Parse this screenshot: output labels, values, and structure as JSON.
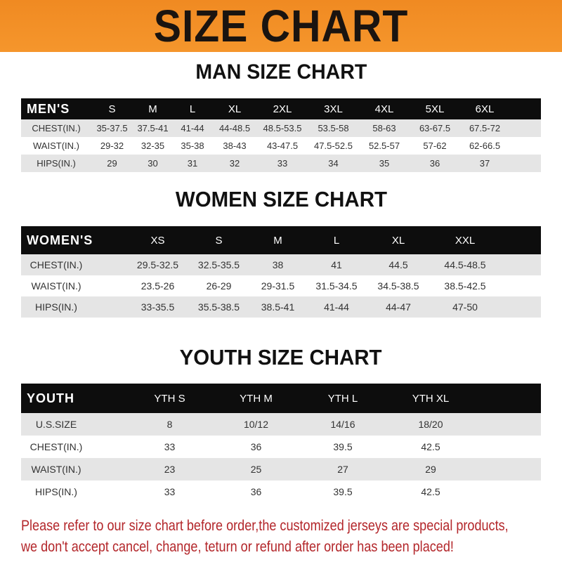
{
  "banner": "SIZE CHART",
  "men": {
    "title": "MAN SIZE CHART",
    "header": [
      "MEN'S",
      "S",
      "M",
      "L",
      "XL",
      "2XL",
      "3XL",
      "4XL",
      "5XL",
      "6XL"
    ],
    "rows": [
      [
        "CHEST(IN.)",
        "35-37.5",
        "37.5-41",
        "41-44",
        "44-48.5",
        "48.5-53.5",
        "53.5-58",
        "58-63",
        "63-67.5",
        "67.5-72"
      ],
      [
        "WAIST(IN.)",
        "29-32",
        "32-35",
        "35-38",
        "38-43",
        "43-47.5",
        "47.5-52.5",
        "52.5-57",
        "57-62",
        "62-66.5"
      ],
      [
        "HIPS(IN.)",
        "29",
        "30",
        "31",
        "32",
        "33",
        "34",
        "35",
        "36",
        "37"
      ]
    ]
  },
  "women": {
    "title": "WOMEN SIZE CHART",
    "header": [
      "WOMEN'S",
      "XS",
      "S",
      "M",
      "L",
      "XL",
      "XXL"
    ],
    "rows": [
      [
        "CHEST(IN.)",
        "29.5-32.5",
        "32.5-35.5",
        "38",
        "41",
        "44.5",
        "44.5-48.5"
      ],
      [
        "WAIST(IN.)",
        "23.5-26",
        "26-29",
        "29-31.5",
        "31.5-34.5",
        "34.5-38.5",
        "38.5-42.5"
      ],
      [
        "HIPS(IN.)",
        "33-35.5",
        "35.5-38.5",
        "38.5-41",
        "41-44",
        "44-47",
        "47-50"
      ]
    ]
  },
  "youth": {
    "title": "YOUTH SIZE CHART",
    "header": [
      "YOUTH",
      "YTH S",
      "YTH M",
      "YTH L",
      "YTH XL"
    ],
    "rows": [
      [
        "U.S.SIZE",
        "8",
        "10/12",
        "14/16",
        "18/20"
      ],
      [
        "CHEST(IN.)",
        "33",
        "36",
        "39.5",
        "42.5"
      ],
      [
        "WAIST(IN.)",
        "23",
        "25",
        "27",
        "29"
      ],
      [
        "HIPS(IN.)",
        "33",
        "36",
        "39.5",
        "42.5"
      ]
    ]
  },
  "note": {
    "line1": "Please refer to our size chart before order,the customized jerseys are special products,",
    "line2": "we don't accept cancel, change, teturn or refund after order has been placed!"
  },
  "colors": {
    "banner": "#f08a22",
    "header": "#0d0d0d",
    "stripe": "#e5e5e5",
    "note": "#b3262a"
  }
}
